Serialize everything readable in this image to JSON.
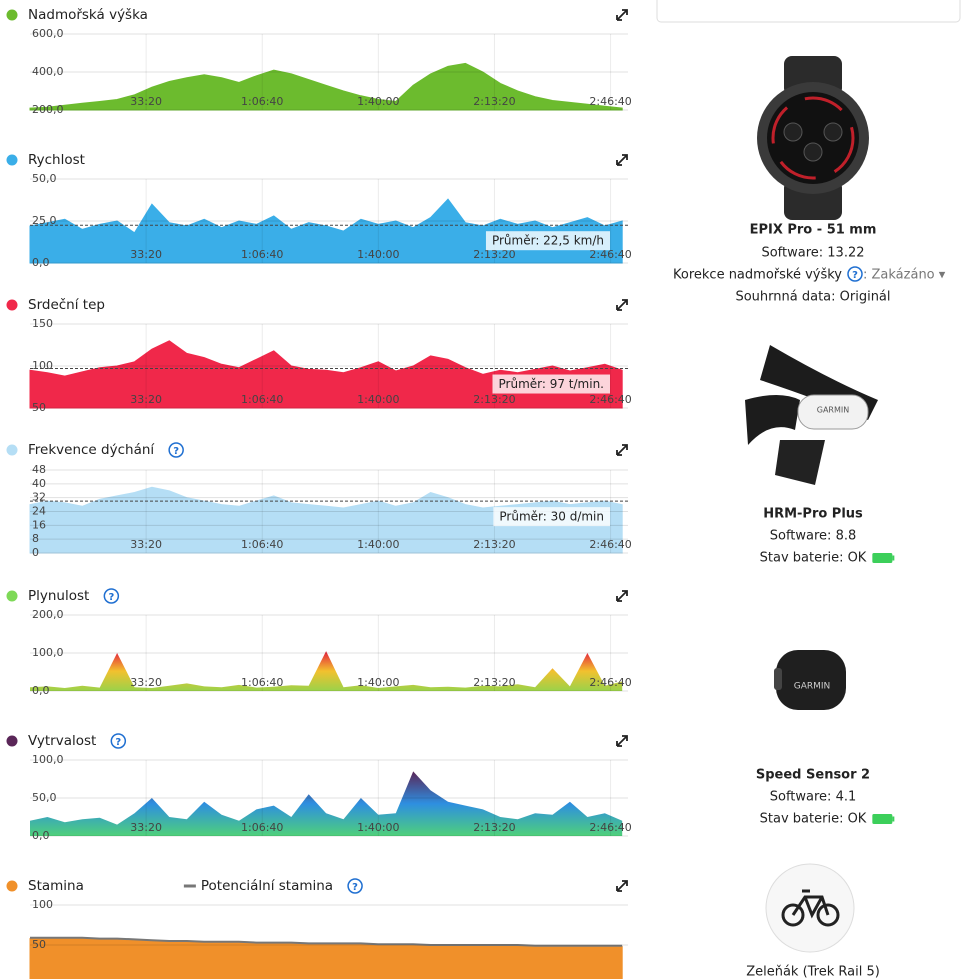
{
  "chart_data": [
    {
      "type": "area",
      "series": [
        {
          "name": "Nadmořská výška",
          "color": "#6cbb2e",
          "values": [
            210,
            215,
            225,
            235,
            245,
            255,
            280,
            320,
            350,
            370,
            385,
            370,
            345,
            380,
            410,
            390,
            360,
            330,
            300,
            275,
            255,
            245,
            330,
            390,
            430,
            445,
            400,
            340,
            300,
            270,
            250,
            240,
            230,
            220,
            210
          ]
        }
      ],
      "x": [
        0,
        300,
        600,
        900,
        1200,
        1500,
        1800,
        2100,
        2400,
        2700,
        3000,
        3300,
        3600,
        3900,
        4200,
        4500,
        4800,
        5100,
        5400,
        5700,
        6000,
        6300,
        6600,
        6900,
        7200,
        7500,
        7800,
        8100,
        8400,
        8700,
        9000,
        9300,
        9600,
        9900,
        10200
      ],
      "xlim": [
        0,
        10300
      ],
      "xticks": [
        {
          "value": 2000,
          "label": "33:20"
        },
        {
          "value": 4000,
          "label": "1:06:40"
        },
        {
          "value": 6000,
          "label": "1:40:00"
        },
        {
          "value": 8000,
          "label": "2:13:20"
        },
        {
          "value": 10000,
          "label": "2:46:40"
        }
      ],
      "ylim": [
        200,
        600
      ],
      "yticks": [
        {
          "value": 600,
          "label": "600,0"
        },
        {
          "value": 400,
          "label": "400,0"
        },
        {
          "value": 200,
          "label": "200,0"
        }
      ],
      "grid": true
    },
    {
      "type": "area",
      "series": [
        {
          "name": "Rychlost",
          "color": "#3aaee8",
          "values": [
            22,
            24,
            26,
            20,
            23,
            25,
            18,
            35,
            24,
            22,
            26,
            21,
            25,
            23,
            28,
            20,
            24,
            22,
            19,
            26,
            23,
            25,
            21,
            27,
            38,
            24,
            22,
            26,
            23,
            25,
            21,
            24,
            27,
            22,
            25
          ]
        }
      ],
      "x": [
        0,
        300,
        600,
        900,
        1200,
        1500,
        1800,
        2100,
        2400,
        2700,
        3000,
        3300,
        3600,
        3900,
        4200,
        4500,
        4800,
        5100,
        5400,
        5700,
        6000,
        6300,
        6600,
        6900,
        7200,
        7500,
        7800,
        8100,
        8400,
        8700,
        9000,
        9300,
        9600,
        9900,
        10200
      ],
      "xlim": [
        0,
        10300
      ],
      "xticks": [
        {
          "value": 2000,
          "label": "33:20"
        },
        {
          "value": 4000,
          "label": "1:06:40"
        },
        {
          "value": 6000,
          "label": "1:40:00"
        },
        {
          "value": 8000,
          "label": "2:13:20"
        },
        {
          "value": 10000,
          "label": "2:46:40"
        }
      ],
      "ylim": [
        0,
        50
      ],
      "yticks": [
        {
          "value": 50,
          "label": "50,0"
        },
        {
          "value": 25,
          "label": "25,0"
        },
        {
          "value": 0,
          "label": "0,0"
        }
      ],
      "grid": true,
      "average": 22.5,
      "average_label": "Průměr: 22,5 km/h"
    },
    {
      "type": "area",
      "series": [
        {
          "name": "Srdeční tep",
          "color": "#f0284a",
          "values": [
            95,
            92,
            88,
            93,
            98,
            100,
            105,
            120,
            130,
            115,
            110,
            102,
            98,
            108,
            118,
            100,
            96,
            95,
            92,
            98,
            105,
            94,
            100,
            112,
            108,
            98,
            90,
            95,
            92,
            96,
            100,
            94,
            98,
            102,
            95
          ]
        }
      ],
      "x": [
        0,
        300,
        600,
        900,
        1200,
        1500,
        1800,
        2100,
        2400,
        2700,
        3000,
        3300,
        3600,
        3900,
        4200,
        4500,
        4800,
        5100,
        5400,
        5700,
        6000,
        6300,
        6600,
        6900,
        7200,
        7500,
        7800,
        8100,
        8400,
        8700,
        9000,
        9300,
        9600,
        9900,
        10200
      ],
      "xlim": [
        0,
        10300
      ],
      "xticks": [
        {
          "value": 2000,
          "label": "33:20"
        },
        {
          "value": 4000,
          "label": "1:06:40"
        },
        {
          "value": 6000,
          "label": "1:40:00"
        },
        {
          "value": 8000,
          "label": "2:13:20"
        },
        {
          "value": 10000,
          "label": "2:46:40"
        }
      ],
      "ylim": [
        50,
        150
      ],
      "yticks": [
        150,
        100,
        50
      ],
      "grid": true,
      "average": 97,
      "average_label": "Průměr: 97 t/min."
    },
    {
      "type": "area",
      "series": [
        {
          "name": "Frekvence dýchání",
          "color": "#b5def5",
          "values": [
            28,
            30,
            29,
            27,
            31,
            33,
            35,
            38,
            36,
            32,
            30,
            28,
            27,
            30,
            33,
            29,
            28,
            27,
            26,
            28,
            30,
            27,
            29,
            35,
            32,
            28,
            26,
            27,
            28,
            29,
            30,
            28,
            29,
            30,
            28
          ]
        }
      ],
      "help": "?",
      "x": [
        0,
        300,
        600,
        900,
        1200,
        1500,
        1800,
        2100,
        2400,
        2700,
        3000,
        3300,
        3600,
        3900,
        4200,
        4500,
        4800,
        5100,
        5400,
        5700,
        6000,
        6300,
        6600,
        6900,
        7200,
        7500,
        7800,
        8100,
        8400,
        8700,
        9000,
        9300,
        9600,
        9900,
        10200
      ],
      "xlim": [
        0,
        10300
      ],
      "xticks": [
        {
          "value": 2000,
          "label": "33:20"
        },
        {
          "value": 4000,
          "label": "1:06:40"
        },
        {
          "value": 6000,
          "label": "1:40:00"
        },
        {
          "value": 8000,
          "label": "2:13:20"
        },
        {
          "value": 10000,
          "label": "2:46:40"
        }
      ],
      "ylim": [
        0,
        48
      ],
      "yticks": [
        48,
        40,
        32,
        24,
        16,
        8,
        0
      ],
      "grid": true,
      "average": 30,
      "average_label": "Průměr: 30 d/min"
    },
    {
      "type": "area",
      "series": [
        {
          "name": "Plynulost",
          "color": "#7ed957",
          "values": [
            10,
            12,
            8,
            14,
            9,
            100,
            10,
            8,
            14,
            20,
            12,
            10,
            16,
            9,
            11,
            15,
            14,
            105,
            10,
            15,
            8,
            12,
            16,
            10,
            11,
            9,
            14,
            12,
            18,
            10,
            60,
            12,
            100,
            14,
            25
          ]
        }
      ],
      "help": "?",
      "gradient": [
        "#e41e3f",
        "#f2c12e",
        "#9ad24a"
      ],
      "x": [
        0,
        300,
        600,
        900,
        1200,
        1500,
        1800,
        2100,
        2400,
        2700,
        3000,
        3300,
        3600,
        3900,
        4200,
        4500,
        4800,
        5100,
        5400,
        5700,
        6000,
        6300,
        6600,
        6900,
        7200,
        7500,
        7800,
        8100,
        8400,
        8700,
        9000,
        9300,
        9600,
        9900,
        10200
      ],
      "xlim": [
        0,
        10300
      ],
      "xticks": [
        {
          "value": 2000,
          "label": "33:20"
        },
        {
          "value": 4000,
          "label": "1:06:40"
        },
        {
          "value": 6000,
          "label": "1:40:00"
        },
        {
          "value": 8000,
          "label": "2:13:20"
        },
        {
          "value": 10000,
          "label": "2:46:40"
        }
      ],
      "ylim": [
        0,
        200
      ],
      "yticks": [
        {
          "value": 200,
          "label": "200,0"
        },
        {
          "value": 100,
          "label": "100,0"
        },
        {
          "value": 0,
          "label": "0,0"
        }
      ],
      "grid": true
    },
    {
      "type": "area",
      "series": [
        {
          "name": "Vytrvalost",
          "color": "#5a2658",
          "values": [
            20,
            25,
            18,
            22,
            24,
            15,
            30,
            50,
            25,
            22,
            45,
            28,
            20,
            35,
            40,
            25,
            55,
            30,
            22,
            50,
            28,
            30,
            85,
            60,
            45,
            40,
            35,
            25,
            22,
            30,
            28,
            45,
            25,
            30,
            20
          ]
        }
      ],
      "help": "?",
      "gradient": [
        "#5a2658",
        "#2e8fe0",
        "#4fd07a"
      ],
      "x": [
        0,
        300,
        600,
        900,
        1200,
        1500,
        1800,
        2100,
        2400,
        2700,
        3000,
        3300,
        3600,
        3900,
        4200,
        4500,
        4800,
        5100,
        5400,
        5700,
        6000,
        6300,
        6600,
        6900,
        7200,
        7500,
        7800,
        8100,
        8400,
        8700,
        9000,
        9300,
        9600,
        9900,
        10200
      ],
      "xlim": [
        0,
        10300
      ],
      "xticks": [
        {
          "value": 2000,
          "label": "33:20"
        },
        {
          "value": 4000,
          "label": "1:06:40"
        },
        {
          "value": 6000,
          "label": "1:40:00"
        },
        {
          "value": 8000,
          "label": "2:13:20"
        },
        {
          "value": 10000,
          "label": "2:46:40"
        }
      ],
      "ylim": [
        0,
        100
      ],
      "yticks": [
        {
          "value": 100,
          "label": "100,0"
        },
        {
          "value": 50,
          "label": "50,0"
        },
        {
          "value": 0,
          "label": "0,0"
        }
      ],
      "grid": true
    },
    {
      "type": "area",
      "series": [
        {
          "name": "Stamina",
          "color": "#f0902a",
          "values": [
            58,
            58,
            58,
            58,
            57,
            57,
            56,
            55,
            54,
            54,
            53,
            53,
            53,
            52,
            52,
            52,
            51,
            51,
            51,
            51,
            50,
            50,
            50,
            49,
            49,
            49,
            49,
            49,
            49,
            48,
            48,
            48,
            48,
            48,
            48
          ]
        },
        {
          "name": "Potenciální stamina",
          "color": "#777777",
          "type": "line",
          "values": [
            59,
            59,
            59,
            59,
            58,
            58,
            57,
            56,
            55,
            55,
            54,
            54,
            54,
            53,
            53,
            53,
            52,
            52,
            52,
            52,
            51,
            51,
            51,
            50,
            50,
            50,
            50,
            50,
            50,
            49,
            49,
            49,
            49,
            49,
            49
          ]
        }
      ],
      "help": "?",
      "x": [
        0,
        300,
        600,
        900,
        1200,
        1500,
        1800,
        2100,
        2400,
        2700,
        3000,
        3300,
        3600,
        3900,
        4200,
        4500,
        4800,
        5100,
        5400,
        5700,
        6000,
        6300,
        6600,
        6900,
        7200,
        7500,
        7800,
        8100,
        8400,
        8700,
        9000,
        9300,
        9600,
        9900,
        10200
      ],
      "xlim": [
        0,
        10300
      ],
      "ylim": [
        0,
        100
      ],
      "yticks": [
        100,
        50
      ],
      "grid": true
    }
  ],
  "devices": [
    {
      "name": "EPIX Pro - 51 mm",
      "software": "Software: 13.22",
      "altitude_label": "Korekce nadmořské výšky",
      "altitude_help": "?",
      "altitude_value": ": Zakázáno ▾",
      "summary": "Souhrnná data: Originál"
    },
    {
      "name": "HRM-Pro Plus",
      "software": "Software: 8.8",
      "battery": "Stav baterie: OK",
      "brand": "GARMIN"
    },
    {
      "name": "Speed Sensor 2",
      "software": "Software: 4.1",
      "battery": "Stav baterie: OK",
      "brand": "GARMIN"
    },
    {
      "name": "Zeleňák (Trek Rail 5)"
    }
  ]
}
